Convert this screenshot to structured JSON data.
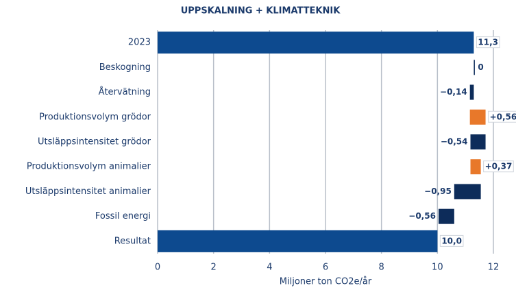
{
  "chart_data": {
    "type": "waterfall",
    "title": "UPPSKALNING + KLIMATTEKNIK",
    "xlabel": "Miljoner ton CO2e/år",
    "categories": [
      "2023",
      "Beskogning",
      "Återvätning",
      "Produktionsvolym grödor",
      "Utsläppsintensitet grödor",
      "Produktionsvolym animalier",
      "Utsläppsintensitet animalier",
      "Fossil energi",
      "Resultat"
    ],
    "values": [
      11.3,
      0,
      -0.14,
      0.56,
      -0.54,
      0.37,
      -0.95,
      -0.56,
      10.0
    ],
    "value_labels": [
      "11,3",
      "0",
      "−0,14",
      "+0,56",
      "−0,54",
      "+0,37",
      "−0,95",
      "−0,56",
      "10,0"
    ],
    "measure": [
      "total",
      "relative",
      "relative",
      "relative",
      "relative",
      "relative",
      "relative",
      "relative",
      "total"
    ],
    "colors": [
      "#0d4a8f",
      "#0d2c5a",
      "#0d2c5a",
      "#e8782a",
      "#0d2c5a",
      "#e8782a",
      "#0d2c5a",
      "#0d2c5a",
      "#0d4a8f"
    ],
    "xlim": [
      0,
      12
    ],
    "xticks": [
      0,
      2,
      4,
      6,
      8,
      10,
      12
    ],
    "grid": true
  }
}
